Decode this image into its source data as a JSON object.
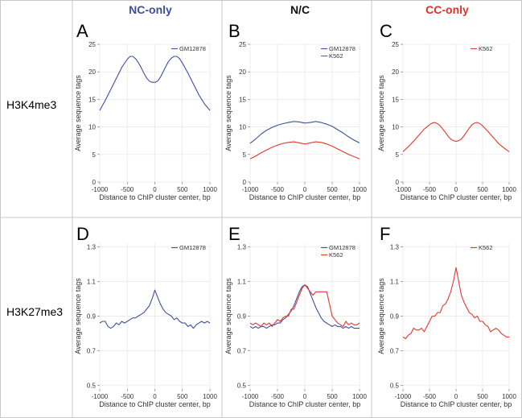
{
  "figure": {
    "columns": [
      "NC-only",
      "N/C",
      "CC-only"
    ],
    "column_colors": [
      "#3c4f9b",
      "#111111",
      "#e0302a"
    ],
    "rows": [
      "H3K4me3",
      "H3K27me3"
    ],
    "series_colors": {
      "GM12878": "#3f4fa0",
      "K562": "#e0392f"
    }
  },
  "chart_data": [
    {
      "panel": "A",
      "type": "line",
      "xlabel": "Distance to ChIP cluster center, bp",
      "ylabel": "Average sequence tags",
      "xlim": [
        -1000,
        1000
      ],
      "ylim": [
        0,
        25
      ],
      "xticks": [
        -1000,
        -500,
        0,
        500,
        1000
      ],
      "xtick_labels": [
        "-1000",
        "-500",
        "0",
        "500",
        "1000"
      ],
      "yticks": [
        0,
        5,
        10,
        15,
        20,
        25
      ],
      "ytick_labels": [
        "0",
        "5",
        "10",
        "15",
        "20",
        "25"
      ],
      "legend": [
        "GM12878"
      ],
      "series": [
        {
          "name": "GM12878",
          "x": [
            -1000,
            -900,
            -800,
            -700,
            -600,
            -500,
            -450,
            -400,
            -350,
            -300,
            -250,
            -200,
            -150,
            -100,
            -50,
            0,
            50,
            100,
            150,
            200,
            250,
            300,
            350,
            400,
            450,
            500,
            600,
            700,
            800,
            900,
            1000
          ],
          "y": [
            13.0,
            14.8,
            16.8,
            18.8,
            20.8,
            22.3,
            22.8,
            22.8,
            22.4,
            21.7,
            20.8,
            19.8,
            18.9,
            18.3,
            18.1,
            18.1,
            18.3,
            19.0,
            20.0,
            21.0,
            21.9,
            22.5,
            22.8,
            22.8,
            22.4,
            21.6,
            19.8,
            17.8,
            15.8,
            14.2,
            13.0
          ]
        }
      ]
    },
    {
      "panel": "B",
      "type": "line",
      "xlabel": "Distance to ChIP cluster center, bp",
      "ylabel": "Average sequence tags",
      "xlim": [
        -1000,
        1000
      ],
      "ylim": [
        0,
        25
      ],
      "xticks": [
        -1000,
        -500,
        0,
        500,
        1000
      ],
      "xtick_labels": [
        "-1000",
        "-500",
        "0",
        "500",
        "1000"
      ],
      "yticks": [
        0,
        5,
        10,
        15,
        20,
        25
      ],
      "ytick_labels": [
        "0",
        "5",
        "10",
        "15",
        "20",
        "25"
      ],
      "legend": [
        "GM12878",
        "K562"
      ],
      "series": [
        {
          "name": "GM12878",
          "x": [
            -1000,
            -900,
            -800,
            -700,
            -600,
            -500,
            -400,
            -300,
            -200,
            -100,
            0,
            100,
            200,
            300,
            400,
            500,
            600,
            700,
            800,
            900,
            1000
          ],
          "y": [
            7.0,
            7.8,
            8.7,
            9.4,
            9.9,
            10.3,
            10.6,
            10.8,
            11.0,
            10.9,
            10.7,
            10.8,
            11.0,
            10.8,
            10.5,
            10.1,
            9.5,
            8.9,
            8.2,
            7.6,
            7.1
          ]
        },
        {
          "name": "K562",
          "x": [
            -1000,
            -900,
            -800,
            -700,
            -600,
            -500,
            -400,
            -300,
            -200,
            -100,
            0,
            100,
            200,
            300,
            400,
            500,
            600,
            700,
            800,
            900,
            1000
          ],
          "y": [
            4.2,
            4.7,
            5.3,
            5.8,
            6.3,
            6.7,
            7.0,
            7.2,
            7.3,
            7.1,
            6.9,
            7.1,
            7.3,
            7.2,
            6.9,
            6.5,
            6.0,
            5.5,
            5.0,
            4.6,
            4.2
          ]
        }
      ]
    },
    {
      "panel": "C",
      "type": "line",
      "xlabel": "Distance to ChIP cluster center, bp",
      "ylabel": "Average sequence tags",
      "xlim": [
        -1000,
        1000
      ],
      "ylim": [
        0,
        25
      ],
      "xticks": [
        -1000,
        -500,
        0,
        500,
        1000
      ],
      "xtick_labels": [
        "-1000",
        "-500",
        "0",
        "500",
        "1000"
      ],
      "yticks": [
        0,
        5,
        10,
        15,
        20,
        25
      ],
      "ytick_labels": [
        "0",
        "5",
        "10",
        "15",
        "20",
        "25"
      ],
      "legend": [
        "K562"
      ],
      "series": [
        {
          "name": "K562",
          "x": [
            -1000,
            -900,
            -800,
            -700,
            -600,
            -500,
            -450,
            -400,
            -350,
            -300,
            -250,
            -200,
            -150,
            -100,
            -50,
            0,
            50,
            100,
            150,
            200,
            250,
            300,
            350,
            400,
            450,
            500,
            600,
            700,
            800,
            900,
            1000
          ],
          "y": [
            5.5,
            6.4,
            7.4,
            8.5,
            9.6,
            10.4,
            10.7,
            10.8,
            10.6,
            10.2,
            9.6,
            9.0,
            8.3,
            7.8,
            7.5,
            7.4,
            7.5,
            7.8,
            8.4,
            9.1,
            9.8,
            10.4,
            10.7,
            10.8,
            10.6,
            10.2,
            9.2,
            8.1,
            7.0,
            6.2,
            5.5
          ]
        }
      ]
    },
    {
      "panel": "D",
      "type": "line",
      "xlabel": "Distance to ChIP cluster center, bp",
      "ylabel": "Average sequence tags",
      "xlim": [
        -1000,
        1000
      ],
      "ylim": [
        0.48,
        1.32
      ],
      "xticks": [
        -1000,
        -500,
        0,
        500,
        1000
      ],
      "xtick_labels": [
        "-1000",
        "-500",
        "0",
        "500",
        "1000"
      ],
      "yticks": [
        0.5,
        0.7,
        0.9,
        1.1,
        1.3
      ],
      "ytick_labels": [
        "0.5",
        "0.7",
        "0.9",
        "1.1",
        "1.3"
      ],
      "legend": [
        "GM12878"
      ],
      "series": [
        {
          "name": "GM12878",
          "x": [
            -1000,
            -950,
            -900,
            -850,
            -800,
            -750,
            -700,
            -650,
            -600,
            -550,
            -500,
            -450,
            -400,
            -350,
            -300,
            -250,
            -200,
            -150,
            -100,
            -50,
            0,
            50,
            100,
            150,
            200,
            250,
            300,
            350,
            400,
            450,
            500,
            550,
            600,
            650,
            700,
            750,
            800,
            850,
            900,
            950,
            1000
          ],
          "y": [
            0.86,
            0.87,
            0.87,
            0.84,
            0.83,
            0.84,
            0.86,
            0.85,
            0.87,
            0.86,
            0.87,
            0.88,
            0.89,
            0.89,
            0.9,
            0.91,
            0.92,
            0.94,
            0.96,
            1.0,
            1.05,
            1.01,
            0.97,
            0.94,
            0.92,
            0.91,
            0.9,
            0.88,
            0.89,
            0.87,
            0.86,
            0.86,
            0.84,
            0.85,
            0.83,
            0.85,
            0.86,
            0.87,
            0.86,
            0.87,
            0.86
          ]
        }
      ]
    },
    {
      "panel": "E",
      "type": "line",
      "xlabel": "Distance to ChIP cluster center, bp",
      "ylabel": "Average sequence tags",
      "xlim": [
        -1000,
        1000
      ],
      "ylim": [
        0.48,
        1.32
      ],
      "xticks": [
        -1000,
        -500,
        0,
        500,
        1000
      ],
      "xtick_labels": [
        "-1000",
        "-500",
        "0",
        "500",
        "1000"
      ],
      "yticks": [
        0.5,
        0.7,
        0.9,
        1.1,
        1.3
      ],
      "ytick_labels": [
        "0.5",
        "0.7",
        "0.9",
        "1.1",
        "1.3"
      ],
      "legend": [
        "GM12878",
        "K562"
      ],
      "series": [
        {
          "name": "GM12878",
          "x": [
            -1000,
            -950,
            -900,
            -850,
            -800,
            -750,
            -700,
            -650,
            -600,
            -550,
            -500,
            -450,
            -400,
            -350,
            -300,
            -250,
            -200,
            -150,
            -100,
            -50,
            0,
            50,
            100,
            150,
            200,
            250,
            300,
            350,
            400,
            450,
            500,
            550,
            600,
            650,
            700,
            750,
            800,
            850,
            900,
            950,
            1000
          ],
          "y": [
            0.84,
            0.83,
            0.84,
            0.83,
            0.84,
            0.84,
            0.83,
            0.84,
            0.85,
            0.85,
            0.86,
            0.86,
            0.88,
            0.89,
            0.91,
            0.93,
            0.96,
            1.0,
            1.04,
            1.07,
            1.08,
            1.07,
            1.03,
            0.99,
            0.95,
            0.92,
            0.89,
            0.87,
            0.86,
            0.85,
            0.84,
            0.85,
            0.84,
            0.84,
            0.83,
            0.84,
            0.83,
            0.84,
            0.83,
            0.83,
            0.83
          ]
        },
        {
          "name": "K562",
          "x": [
            -1000,
            -950,
            -900,
            -850,
            -800,
            -750,
            -700,
            -650,
            -600,
            -550,
            -500,
            -450,
            -400,
            -350,
            -300,
            -250,
            -200,
            -150,
            -100,
            -50,
            0,
            50,
            100,
            150,
            200,
            250,
            300,
            350,
            400,
            450,
            500,
            550,
            600,
            650,
            700,
            750,
            800,
            850,
            900,
            950,
            1000
          ],
          "y": [
            0.86,
            0.85,
            0.86,
            0.85,
            0.84,
            0.86,
            0.85,
            0.86,
            0.84,
            0.86,
            0.88,
            0.87,
            0.89,
            0.9,
            0.9,
            0.94,
            0.94,
            0.98,
            1.02,
            1.06,
            1.08,
            1.06,
            1.04,
            1.02,
            1.04,
            1.04,
            1.04,
            1.04,
            1.04,
            0.97,
            0.9,
            0.88,
            0.86,
            0.85,
            0.84,
            0.87,
            0.85,
            0.86,
            0.85,
            0.85,
            0.86
          ]
        }
      ]
    },
    {
      "panel": "F",
      "type": "line",
      "xlabel": "Distance to ChIP cluster center, bp",
      "ylabel": "Average sequence tags",
      "xlim": [
        -1000,
        1000
      ],
      "ylim": [
        0.48,
        1.32
      ],
      "xticks": [
        -1000,
        -500,
        0,
        500,
        1000
      ],
      "xtick_labels": [
        "-1000",
        "-500",
        "0",
        "500",
        "1000"
      ],
      "yticks": [
        0.5,
        0.7,
        0.9,
        1.1,
        1.3
      ],
      "ytick_labels": [
        "0.5",
        "0.7",
        "0.9",
        "1.1",
        "1.3"
      ],
      "legend": [
        "K562"
      ],
      "series": [
        {
          "name": "K562",
          "x": [
            -1000,
            -950,
            -900,
            -850,
            -800,
            -750,
            -700,
            -650,
            -600,
            -550,
            -500,
            -450,
            -400,
            -350,
            -300,
            -250,
            -200,
            -150,
            -100,
            -50,
            0,
            50,
            100,
            150,
            200,
            250,
            300,
            350,
            400,
            450,
            500,
            550,
            600,
            650,
            700,
            750,
            800,
            850,
            900,
            950,
            1000
          ],
          "y": [
            0.78,
            0.77,
            0.79,
            0.8,
            0.83,
            0.82,
            0.82,
            0.83,
            0.81,
            0.84,
            0.87,
            0.9,
            0.9,
            0.92,
            0.92,
            0.96,
            0.97,
            1.0,
            1.04,
            1.1,
            1.18,
            1.1,
            1.02,
            0.98,
            0.95,
            0.92,
            0.91,
            0.89,
            0.9,
            0.87,
            0.87,
            0.85,
            0.84,
            0.81,
            0.82,
            0.83,
            0.82,
            0.8,
            0.79,
            0.78,
            0.78
          ]
        }
      ]
    }
  ]
}
